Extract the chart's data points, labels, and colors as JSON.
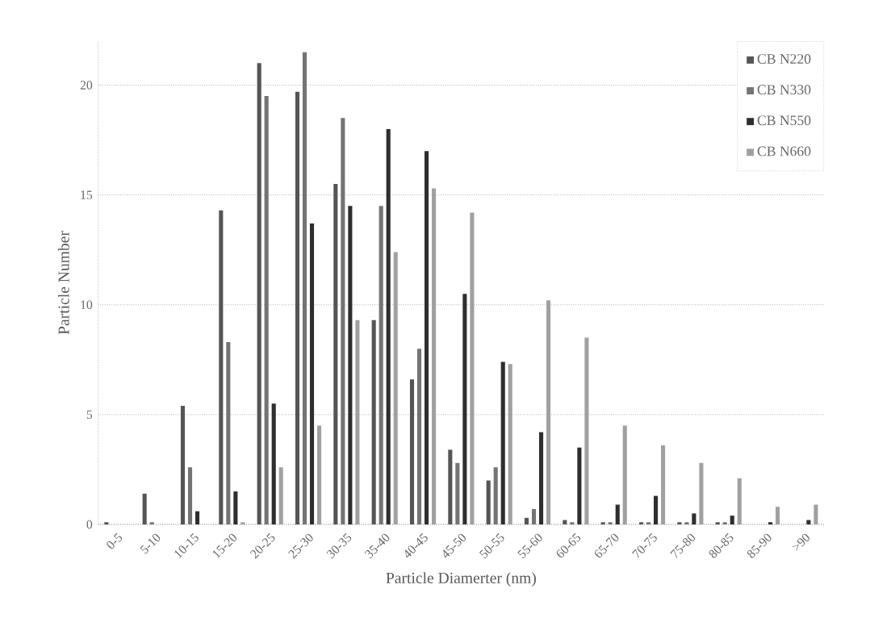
{
  "chart_data": {
    "type": "bar",
    "xlabel": "Particle Diamerter (nm)",
    "ylabel": "Particle Number",
    "categories": [
      "0-5",
      "5-10",
      "10-15",
      "15-20",
      "20-25",
      "25-30",
      "30-35",
      "35-40",
      "40-45",
      "45-50",
      "50-55",
      "55-60",
      "60-65",
      "65-70",
      "70-75",
      "75-80",
      "80-85",
      "85-90",
      ">90"
    ],
    "series": [
      {
        "name": "CB N220",
        "color": "#555555",
        "values": [
          0.1,
          1.4,
          5.4,
          14.3,
          21,
          19.7,
          15.5,
          9.3,
          6.6,
          3.4,
          2,
          0.3,
          0.2,
          0.1,
          0.1,
          0.1,
          0.1,
          0,
          0
        ]
      },
      {
        "name": "CB N330",
        "color": "#747474",
        "values": [
          0,
          0.1,
          2.6,
          8.3,
          19.5,
          21.5,
          18.5,
          14.5,
          8,
          2.8,
          2.6,
          0.7,
          0.1,
          0.1,
          0.1,
          0.1,
          0.1,
          0,
          0
        ]
      },
      {
        "name": "CB N550",
        "color": "#2e2e2e",
        "values": [
          0,
          0,
          0.6,
          1.5,
          5.5,
          13.7,
          14.5,
          18,
          17,
          10.5,
          7.4,
          4.2,
          3.5,
          0.9,
          1.3,
          0.5,
          0.4,
          0.1,
          0.2
        ]
      },
      {
        "name": "CB N660",
        "color": "#a0a0a0",
        "values": [
          0,
          0,
          0,
          0.1,
          2.6,
          4.5,
          9.3,
          12.4,
          15.3,
          14.2,
          7.3,
          10.2,
          8.5,
          4.5,
          3.6,
          2.8,
          2.1,
          0.8,
          0.9
        ]
      }
    ],
    "ylim": [
      0,
      22
    ],
    "yticks": [
      0,
      5,
      10,
      15,
      20
    ],
    "grid": "y",
    "legend": "top right"
  }
}
